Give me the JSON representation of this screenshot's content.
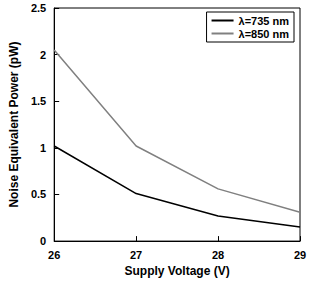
{
  "chart_data": {
    "type": "line",
    "x_label": "Supply Voltage (V)",
    "y_label": "Noise Equivalent Power (pW)",
    "x": [
      26,
      27,
      28,
      29
    ],
    "series": [
      {
        "name": "λ=735 nm",
        "color": "#000000",
        "values": [
          1.02,
          0.51,
          0.27,
          0.15
        ]
      },
      {
        "name": "λ=850 nm",
        "color": "#808080",
        "values": [
          2.05,
          1.02,
          0.56,
          0.31
        ]
      }
    ],
    "xlim": [
      26,
      29
    ],
    "xticks": [
      26,
      27,
      28,
      29
    ],
    "ylim": [
      0,
      2.5
    ],
    "yticks": [
      0,
      0.5,
      1,
      1.5,
      2,
      2.5
    ],
    "grid": false,
    "legend": "upper right"
  }
}
